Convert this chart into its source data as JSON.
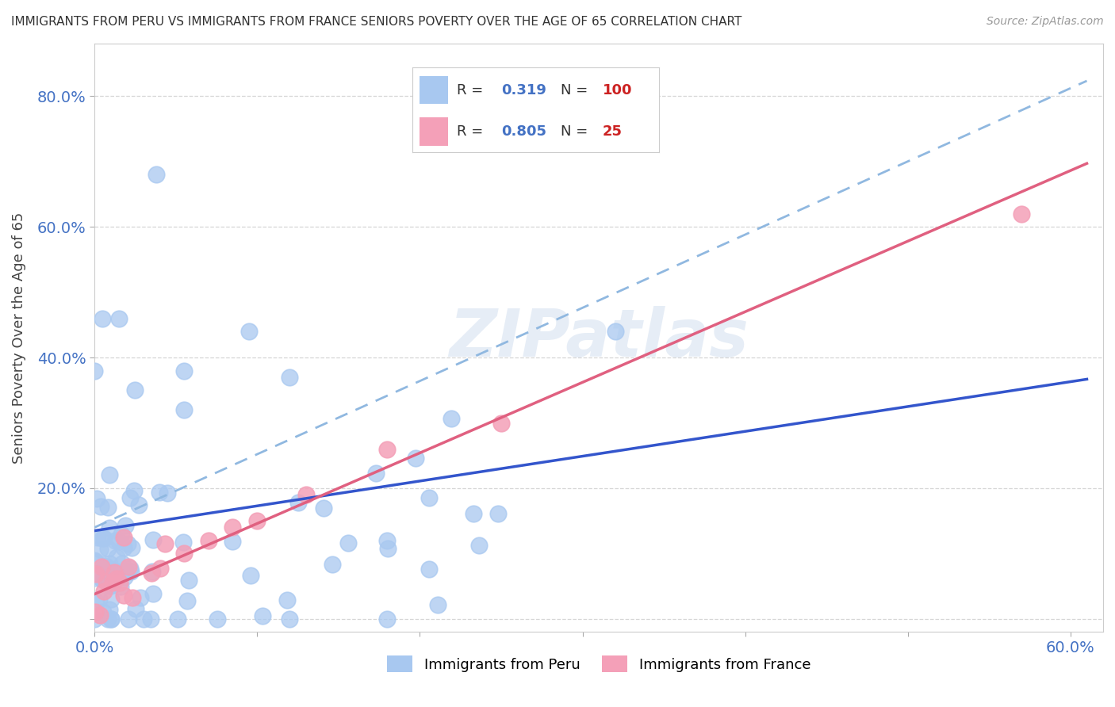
{
  "title": "IMMIGRANTS FROM PERU VS IMMIGRANTS FROM FRANCE SENIORS POVERTY OVER THE AGE OF 65 CORRELATION CHART",
  "source": "Source: ZipAtlas.com",
  "ylabel": "Seniors Poverty Over the Age of 65",
  "xlim": [
    0.0,
    0.62
  ],
  "ylim": [
    -0.02,
    0.88
  ],
  "legend1_R": "0.319",
  "legend1_N": "100",
  "legend2_R": "0.805",
  "legend2_N": "25",
  "peru_color": "#a8c8f0",
  "france_color": "#f4a0b8",
  "peru_line_color": "#3355cc",
  "france_line_color": "#e06080",
  "trend_dashed_color": "#90b8e0",
  "watermark": "ZIPatlas",
  "background_color": "#ffffff",
  "grid_color": "#cccccc"
}
